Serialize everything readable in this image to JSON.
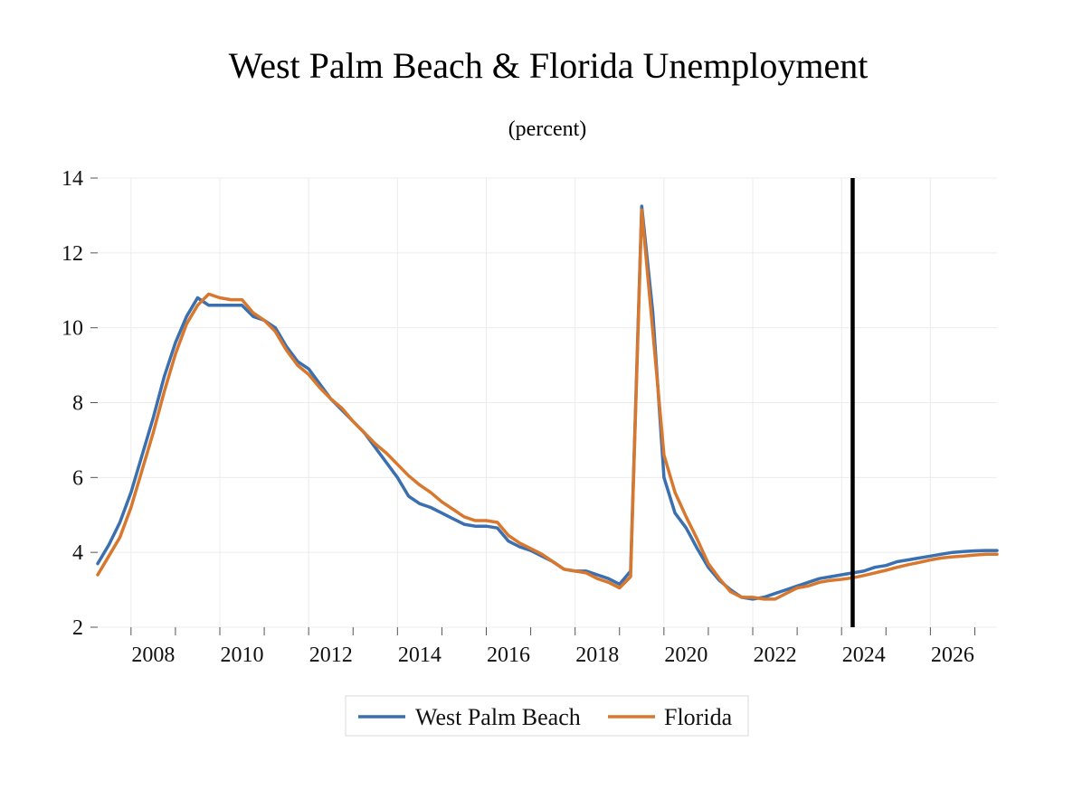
{
  "chart_data": {
    "type": "line",
    "title": "West Palm Beach & Florida Unemployment",
    "subtitle": "(percent)",
    "xlabel": "",
    "ylabel": "",
    "ylim": [
      2,
      14
    ],
    "xlim": [
      2007.25,
      2027.5
    ],
    "y_ticks": [
      2,
      4,
      6,
      8,
      10,
      12,
      14
    ],
    "x_tick_labels": [
      "2008",
      "2010",
      "2012",
      "2014",
      "2016",
      "2018",
      "2020",
      "2022",
      "2024",
      "2026"
    ],
    "x_tick_label_values": [
      2008.5,
      2010.5,
      2012.5,
      2014.5,
      2016.5,
      2018.5,
      2020.5,
      2022.5,
      2024.5,
      2026.5
    ],
    "grid": true,
    "legend_position": "bottom-center",
    "vertical_marker_x": 2024.25,
    "series": [
      {
        "name": "West Palm Beach",
        "color": "#3a6fb0",
        "x": [
          2007.25,
          2007.5,
          2007.75,
          2008,
          2008.25,
          2008.5,
          2008.75,
          2009,
          2009.25,
          2009.5,
          2009.75,
          2010,
          2010.25,
          2010.5,
          2010.75,
          2011,
          2011.25,
          2011.5,
          2011.75,
          2012,
          2012.25,
          2012.5,
          2012.75,
          2013,
          2013.25,
          2013.5,
          2013.75,
          2014,
          2014.25,
          2014.5,
          2014.75,
          2015,
          2015.25,
          2015.5,
          2015.75,
          2016,
          2016.25,
          2016.5,
          2016.75,
          2017,
          2017.25,
          2017.5,
          2017.75,
          2018,
          2018.25,
          2018.5,
          2018.75,
          2019,
          2019.25,
          2019.5,
          2019.75,
          2020,
          2020.25,
          2020.5,
          2020.75,
          2021,
          2021.25,
          2021.5,
          2021.75,
          2022,
          2022.25,
          2022.5,
          2022.75,
          2023,
          2023.25,
          2023.5,
          2023.75,
          2024,
          2024.25,
          2024.5,
          2024.75,
          2025,
          2025.25,
          2025.5,
          2025.75,
          2026,
          2026.25,
          2026.5,
          2026.75,
          2027,
          2027.25,
          2027.5
        ],
        "values": [
          3.7,
          4.2,
          4.8,
          5.6,
          6.6,
          7.6,
          8.7,
          9.6,
          10.3,
          10.8,
          10.6,
          10.6,
          10.6,
          10.6,
          10.3,
          10.2,
          10.0,
          9.5,
          9.1,
          8.9,
          8.5,
          8.1,
          7.8,
          7.5,
          7.2,
          6.8,
          6.4,
          6.0,
          5.5,
          5.3,
          5.2,
          5.05,
          4.9,
          4.75,
          4.7,
          4.7,
          4.65,
          4.3,
          4.15,
          4.05,
          3.9,
          3.75,
          3.55,
          3.5,
          3.5,
          3.4,
          3.3,
          3.15,
          3.5,
          13.25,
          10.4,
          6.0,
          5.05,
          4.65,
          4.1,
          3.6,
          3.25,
          3.0,
          2.8,
          2.75,
          2.8,
          2.9,
          3.0,
          3.1,
          3.2,
          3.3,
          3.35,
          3.4,
          3.45,
          3.5,
          3.6,
          3.65,
          3.75,
          3.8,
          3.85,
          3.9,
          3.95,
          4.0,
          4.02,
          4.04,
          4.05,
          4.05
        ]
      },
      {
        "name": "Florida",
        "color": "#d8782e",
        "x": [
          2007.25,
          2007.5,
          2007.75,
          2008,
          2008.25,
          2008.5,
          2008.75,
          2009,
          2009.25,
          2009.5,
          2009.75,
          2010,
          2010.25,
          2010.5,
          2010.75,
          2011,
          2011.25,
          2011.5,
          2011.75,
          2012,
          2012.25,
          2012.5,
          2012.75,
          2013,
          2013.25,
          2013.5,
          2013.75,
          2014,
          2014.25,
          2014.5,
          2014.75,
          2015,
          2015.25,
          2015.5,
          2015.75,
          2016,
          2016.25,
          2016.5,
          2016.75,
          2017,
          2017.25,
          2017.5,
          2017.75,
          2018,
          2018.25,
          2018.5,
          2018.75,
          2019,
          2019.25,
          2019.5,
          2019.75,
          2020,
          2020.25,
          2020.5,
          2020.75,
          2021,
          2021.25,
          2021.5,
          2021.75,
          2022,
          2022.25,
          2022.5,
          2022.75,
          2023,
          2023.25,
          2023.5,
          2023.75,
          2024,
          2024.25,
          2024.5,
          2024.75,
          2025,
          2025.25,
          2025.5,
          2025.75,
          2026,
          2026.25,
          2026.5,
          2026.75,
          2027,
          2027.25,
          2027.5
        ],
        "values": [
          3.4,
          3.9,
          4.4,
          5.2,
          6.2,
          7.2,
          8.3,
          9.3,
          10.1,
          10.6,
          10.9,
          10.8,
          10.75,
          10.75,
          10.4,
          10.2,
          9.9,
          9.4,
          9.0,
          8.75,
          8.4,
          8.1,
          7.85,
          7.5,
          7.2,
          6.9,
          6.65,
          6.35,
          6.05,
          5.8,
          5.6,
          5.35,
          5.15,
          4.95,
          4.85,
          4.85,
          4.8,
          4.45,
          4.25,
          4.1,
          3.95,
          3.75,
          3.55,
          3.5,
          3.45,
          3.3,
          3.2,
          3.05,
          3.35,
          13.15,
          9.9,
          6.6,
          5.6,
          4.95,
          4.35,
          3.7,
          3.3,
          2.95,
          2.8,
          2.8,
          2.75,
          2.75,
          2.9,
          3.05,
          3.1,
          3.2,
          3.25,
          3.28,
          3.32,
          3.38,
          3.45,
          3.52,
          3.6,
          3.67,
          3.73,
          3.8,
          3.85,
          3.88,
          3.9,
          3.93,
          3.95,
          3.95
        ]
      }
    ]
  }
}
